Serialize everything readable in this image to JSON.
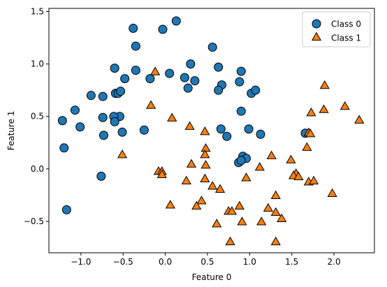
{
  "chart_data": {
    "type": "scatter",
    "xlabel": "Feature 0",
    "ylabel": "Feature 1",
    "xlim": [
      -1.38,
      2.48
    ],
    "ylim": [
      -0.8,
      1.53
    ],
    "xticks": [
      -1.0,
      -0.5,
      0.0,
      0.5,
      1.0,
      1.5,
      2.0
    ],
    "xtick_labels": [
      "−1.0",
      "−0.5",
      "0.0",
      "0.5",
      "1.0",
      "1.5",
      "2.0"
    ],
    "yticks": [
      -0.5,
      0.0,
      0.5,
      1.0,
      1.5
    ],
    "ytick_labels": [
      "−0.5",
      "0.0",
      "0.5",
      "1.0",
      "1.5"
    ],
    "grid": false,
    "legend": "top-right",
    "series": [
      {
        "name": "Class 0",
        "marker": "circle",
        "color": "#1f77b4",
        "points": [
          [
            -0.38,
            1.34
          ],
          [
            -0.03,
            1.33
          ],
          [
            0.13,
            1.41
          ],
          [
            0.56,
            1.16
          ],
          [
            -0.35,
            1.17
          ],
          [
            0.3,
            1.0
          ],
          [
            -0.6,
            0.96
          ],
          [
            -0.35,
            0.94
          ],
          [
            0.63,
            0.97
          ],
          [
            0.9,
            0.93
          ],
          [
            0.05,
            0.91
          ],
          [
            0.23,
            0.87
          ],
          [
            -0.48,
            0.86
          ],
          [
            0.35,
            0.84
          ],
          [
            -0.18,
            0.86
          ],
          [
            0.88,
            0.83
          ],
          [
            0.67,
            0.8
          ],
          [
            0.27,
            0.77
          ],
          [
            0.63,
            0.75
          ],
          [
            -0.59,
            0.72
          ],
          [
            -0.56,
            0.72
          ],
          [
            -0.53,
            0.74
          ],
          [
            1.02,
            0.72
          ],
          [
            1.07,
            0.75
          ],
          [
            -0.88,
            0.7
          ],
          [
            -0.74,
            0.69
          ],
          [
            -1.07,
            0.56
          ],
          [
            -0.74,
            0.49
          ],
          [
            -0.54,
            0.5
          ],
          [
            -0.61,
            0.5
          ],
          [
            -0.6,
            0.45
          ],
          [
            0.9,
            0.55
          ],
          [
            -1.22,
            0.46
          ],
          [
            -1.01,
            0.4
          ],
          [
            0.99,
            0.38
          ],
          [
            0.66,
            0.38
          ],
          [
            -0.25,
            0.37
          ],
          [
            -0.51,
            0.35
          ],
          [
            1.13,
            0.33
          ],
          [
            1.66,
            0.34
          ],
          [
            -0.73,
            0.32
          ],
          [
            0.73,
            0.31
          ],
          [
            -1.2,
            0.2
          ],
          [
            0.92,
            0.12
          ],
          [
            0.96,
            0.1
          ],
          [
            0.87,
            0.06
          ],
          [
            0.9,
            0.08
          ],
          [
            -0.76,
            -0.07
          ],
          [
            -1.17,
            -0.39
          ]
        ]
      },
      {
        "name": "Class 1",
        "marker": "triangle",
        "color": "#ff7f0e",
        "points": [
          [
            -0.12,
            0.92
          ],
          [
            1.89,
            0.79
          ],
          [
            -0.17,
            0.6
          ],
          [
            2.13,
            0.59
          ],
          [
            1.88,
            0.56
          ],
          [
            1.73,
            0.53
          ],
          [
            0.08,
            0.48
          ],
          [
            2.3,
            0.46
          ],
          [
            0.29,
            0.4
          ],
          [
            0.47,
            0.35
          ],
          [
            1.7,
            0.34
          ],
          [
            1.72,
            0.33
          ],
          [
            1.68,
            0.2
          ],
          [
            0.48,
            0.19
          ],
          [
            -0.51,
            0.13
          ],
          [
            0.47,
            0.13
          ],
          [
            1.26,
            0.12
          ],
          [
            1.49,
            0.08
          ],
          [
            0.31,
            0.04
          ],
          [
            0.48,
            0.03
          ],
          [
            1.12,
            0.01
          ],
          [
            -0.08,
            -0.03
          ],
          [
            -0.04,
            -0.03
          ],
          [
            -0.04,
            -0.06
          ],
          [
            1.55,
            -0.05
          ],
          [
            1.52,
            -0.07
          ],
          [
            1.58,
            -0.08
          ],
          [
            0.96,
            -0.09
          ],
          [
            0.47,
            -0.1
          ],
          [
            0.25,
            -0.12
          ],
          [
            1.7,
            -0.13
          ],
          [
            1.76,
            -0.12
          ],
          [
            0.56,
            -0.17
          ],
          [
            0.65,
            -0.2
          ],
          [
            1.98,
            -0.24
          ],
          [
            1.31,
            -0.26
          ],
          [
            0.43,
            -0.31
          ],
          [
            0.06,
            -0.35
          ],
          [
            0.37,
            -0.36
          ],
          [
            0.88,
            -0.36
          ],
          [
            1.22,
            -0.38
          ],
          [
            0.75,
            -0.41
          ],
          [
            0.79,
            -0.41
          ],
          [
            1.31,
            -0.42
          ],
          [
            1.38,
            -0.48
          ],
          [
            0.91,
            -0.51
          ],
          [
            1.14,
            -0.51
          ],
          [
            0.61,
            -0.53
          ],
          [
            0.77,
            -0.7
          ],
          [
            1.31,
            -0.7
          ]
        ]
      }
    ]
  }
}
